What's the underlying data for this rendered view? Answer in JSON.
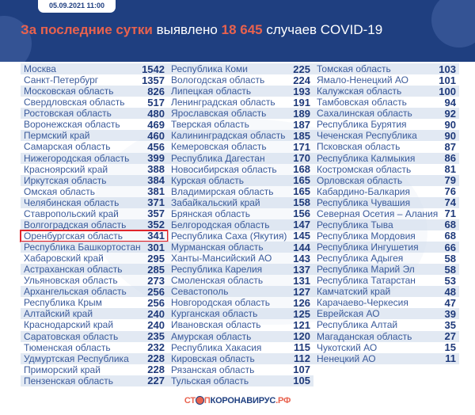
{
  "header": {
    "date": "05.09.2021 11:00",
    "title_highlight": "За последние сутки",
    "title_mid": " выявлено ",
    "title_count": "18 645",
    "title_end": " случаев COVID-19"
  },
  "colors": {
    "header_bg": "#1f3f80",
    "accent": "#e8624e",
    "highlight_box": "#e0262c"
  },
  "highlighted_region": "Оренбургская область",
  "columns": [
    [
      {
        "name": "Москва",
        "value": "1542"
      },
      {
        "name": "Санкт-Петербург",
        "value": "1357"
      },
      {
        "name": "Московская область",
        "value": "826"
      },
      {
        "name": "Свердловская область",
        "value": "517"
      },
      {
        "name": "Ростовская область",
        "value": "480"
      },
      {
        "name": "Воронежская область",
        "value": "469"
      },
      {
        "name": "Пермский край",
        "value": "460"
      },
      {
        "name": "Самарская область",
        "value": "456"
      },
      {
        "name": "Нижегородская область",
        "value": "399"
      },
      {
        "name": "Красноярский край",
        "value": "388"
      },
      {
        "name": "Иркутская область",
        "value": "384"
      },
      {
        "name": "Омская область",
        "value": "381"
      },
      {
        "name": "Челябинская область",
        "value": "371"
      },
      {
        "name": "Ставропольский край",
        "value": "357"
      },
      {
        "name": "Волгоградская область",
        "value": "352"
      },
      {
        "name": "Оренбургская область",
        "value": "341"
      },
      {
        "name": "Республика Башкортостан",
        "value": "301"
      },
      {
        "name": "Хабаровский край",
        "value": "295"
      },
      {
        "name": "Астраханская область",
        "value": "285"
      },
      {
        "name": "Ульяновская область",
        "value": "273"
      },
      {
        "name": "Архангельская область",
        "value": "256"
      },
      {
        "name": "Республика Крым",
        "value": "256"
      },
      {
        "name": "Алтайский край",
        "value": "240"
      },
      {
        "name": "Краснодарский край",
        "value": "240"
      },
      {
        "name": "Саратовская область",
        "value": "235"
      },
      {
        "name": "Тюменская область",
        "value": "232"
      },
      {
        "name": "Удмуртская Республика",
        "value": "228"
      },
      {
        "name": "Приморский край",
        "value": "228"
      },
      {
        "name": "Пензенская область",
        "value": "227"
      }
    ],
    [
      {
        "name": "Республика Коми",
        "value": "225"
      },
      {
        "name": "Вологодская область",
        "value": "224"
      },
      {
        "name": "Липецкая область",
        "value": "193"
      },
      {
        "name": "Ленинградская область",
        "value": "191"
      },
      {
        "name": "Ярославская область",
        "value": "189"
      },
      {
        "name": "Тверская область",
        "value": "187"
      },
      {
        "name": "Калининградская область",
        "value": "185"
      },
      {
        "name": "Кемеровская область",
        "value": "171"
      },
      {
        "name": "Республика Дагестан",
        "value": "170"
      },
      {
        "name": "Новосибирская область",
        "value": "168"
      },
      {
        "name": "Курская область",
        "value": "165"
      },
      {
        "name": "Владимирская область",
        "value": "165"
      },
      {
        "name": "Забайкальский край",
        "value": "158"
      },
      {
        "name": "Брянская область",
        "value": "156"
      },
      {
        "name": "Белгородская область",
        "value": "147"
      },
      {
        "name": "Республика Саха (Якутия)",
        "value": "145"
      },
      {
        "name": "Мурманская область",
        "value": "144"
      },
      {
        "name": "Ханты-Мансийский АО",
        "value": "143"
      },
      {
        "name": "Республика Карелия",
        "value": "137"
      },
      {
        "name": "Смоленская область",
        "value": "131"
      },
      {
        "name": "Севастополь",
        "value": "127"
      },
      {
        "name": "Новгородская область",
        "value": "126"
      },
      {
        "name": "Курганская область",
        "value": "125"
      },
      {
        "name": "Ивановская область",
        "value": "121"
      },
      {
        "name": "Амурская область",
        "value": "120"
      },
      {
        "name": "Республика Хакасия",
        "value": "115"
      },
      {
        "name": "Кировская область",
        "value": "112"
      },
      {
        "name": "Рязанская область",
        "value": "107"
      },
      {
        "name": "Тульская область",
        "value": "105"
      }
    ],
    [
      {
        "name": "Томская область",
        "value": "103"
      },
      {
        "name": "Ямало-Ненецкий АО",
        "value": "101"
      },
      {
        "name": "Калужская область",
        "value": "100"
      },
      {
        "name": "Тамбовская область",
        "value": "94"
      },
      {
        "name": "Сахалинская область",
        "value": "92"
      },
      {
        "name": "Республика Бурятия",
        "value": "90"
      },
      {
        "name": "Чеченская Республика",
        "value": "90"
      },
      {
        "name": "Псковская область",
        "value": "87"
      },
      {
        "name": "Республика Калмыкия",
        "value": "86"
      },
      {
        "name": "Костромская область",
        "value": "81"
      },
      {
        "name": "Орловская область",
        "value": "79"
      },
      {
        "name": "Кабардино-Балкария",
        "value": "76"
      },
      {
        "name": "Республика Чувашия",
        "value": "74"
      },
      {
        "name": "Северная Осетия – Алания",
        "value": "71"
      },
      {
        "name": "Республика Тыва",
        "value": "68"
      },
      {
        "name": "Республика Мордовия",
        "value": "68"
      },
      {
        "name": "Республика Ингушетия",
        "value": "66"
      },
      {
        "name": "Республика Адыгея",
        "value": "58"
      },
      {
        "name": "Республика Марий Эл",
        "value": "58"
      },
      {
        "name": "Республика Татарстан",
        "value": "53"
      },
      {
        "name": "Камчатский край",
        "value": "48"
      },
      {
        "name": "Карачаево-Черкесия",
        "value": "47"
      },
      {
        "name": "Еврейская АО",
        "value": "39"
      },
      {
        "name": "Республика Алтай",
        "value": "35"
      },
      {
        "name": "Магаданская область",
        "value": "27"
      },
      {
        "name": "Чукотский АО",
        "value": "15"
      },
      {
        "name": "Ненецкий АО",
        "value": "11"
      }
    ]
  ],
  "logo": {
    "part1": "СТ",
    "part2": "П",
    "part3": "КОРОНАВИРУС",
    ".rf": ".РФ"
  }
}
